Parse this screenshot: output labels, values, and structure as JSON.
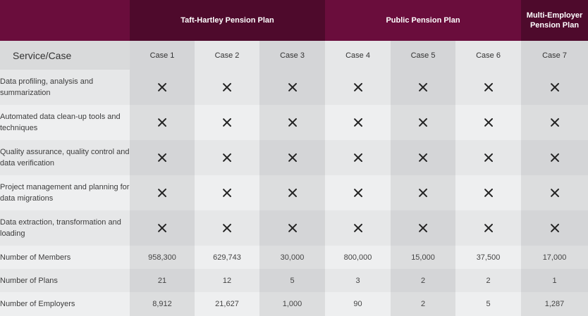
{
  "header": {
    "groups": [
      {
        "label": ""
      },
      {
        "label": "Taft-Hartley Pension Plan"
      },
      {
        "label": "Public Pension Plan"
      },
      {
        "label": "Multi-Employer Pension Plan"
      }
    ],
    "service_label": "Service/Case",
    "cases": [
      "Case 1",
      "Case 2",
      "Case 3",
      "Case 4",
      "Case 5",
      "Case 6",
      "Case 7"
    ]
  },
  "services": [
    {
      "label": "Data profiling, analysis and summarization",
      "marks": [
        "x",
        "x",
        "x",
        "x",
        "x",
        "x",
        "x"
      ]
    },
    {
      "label": "Automated data clean-up tools and techniques",
      "marks": [
        "x",
        "x",
        "x",
        "x",
        "x",
        "x",
        "x"
      ]
    },
    {
      "label": "Quality assurance, quality control and data verification",
      "marks": [
        "x",
        "x",
        "x",
        "x",
        "x",
        "x",
        "x"
      ]
    },
    {
      "label": "Project management and planning for data migrations",
      "marks": [
        "x",
        "x",
        "x",
        "x",
        "x",
        "x",
        "x"
      ]
    },
    {
      "label": "Data extraction, transformation and loading",
      "marks": [
        "x",
        "x",
        "x",
        "x",
        "x",
        "x",
        "x"
      ]
    }
  ],
  "metrics": [
    {
      "label": "Number of Members",
      "values": [
        "958,300",
        "629,743",
        "30,000",
        "800,000",
        "15,000",
        "37,500",
        "17,000"
      ]
    },
    {
      "label": "Number of Plans",
      "values": [
        "21",
        "12",
        "5",
        "3",
        "2",
        "2",
        "1"
      ]
    },
    {
      "label": "Number of Employers",
      "values": [
        "8,912",
        "21,627",
        "1,000",
        "90",
        "2",
        "5",
        "1,287"
      ]
    }
  ],
  "colors": {
    "header_dark": "#4e0a2c",
    "header_light": "#6a0d3c",
    "mark": "#222222"
  },
  "icons": {
    "mark": "x-mark-icon"
  }
}
